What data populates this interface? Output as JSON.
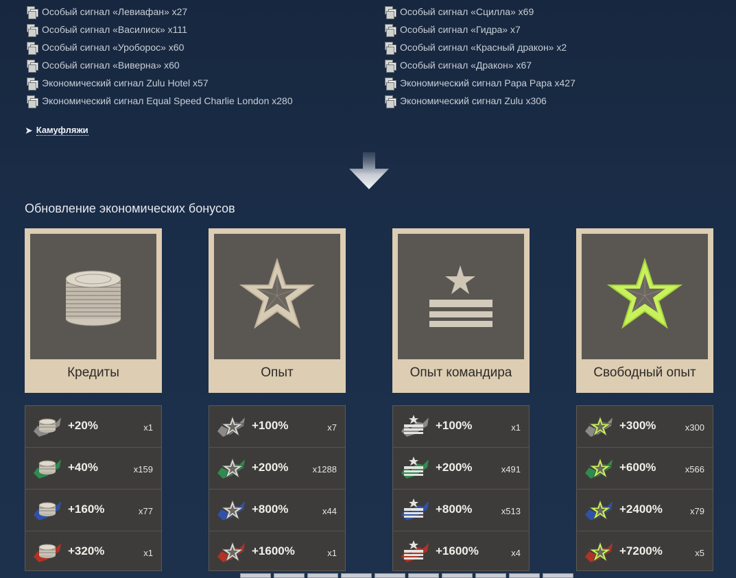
{
  "signals": {
    "left": [
      "Особый сигнал «Левиафан» x27",
      "Особый сигнал «Василиск» x111",
      "Особый сигнал «Уроборос» x60",
      "Особый сигнал «Виверна» x60",
      "Экономический сигнал Zulu Hotel x57",
      "Экономический сигнал Equal Speed Charlie London x280"
    ],
    "right": [
      "Особый сигнал «Сцилла» x69",
      "Особый сигнал «Гидра» x7",
      "Особый сигнал «Красный дракон» x2",
      "Особый сигнал «Дракон» x67",
      "Экономический сигнал Papa Papa x427",
      "Экономический сигнал Zulu x306"
    ]
  },
  "camo": {
    "arrow": "➤",
    "label": "Камуфляжи"
  },
  "section_title": "Обновление экономических бонусов",
  "categories": [
    {
      "label": "Кредиты",
      "icon": "coins-icon",
      "rows": [
        {
          "pct": "+20%",
          "count": "x1",
          "flag": "grey"
        },
        {
          "pct": "+40%",
          "count": "x159",
          "flag": "green"
        },
        {
          "pct": "+160%",
          "count": "x77",
          "flag": "blue"
        },
        {
          "pct": "+320%",
          "count": "x1",
          "flag": "red"
        }
      ]
    },
    {
      "label": "Опыт",
      "icon": "star-icon",
      "rows": [
        {
          "pct": "+100%",
          "count": "x7",
          "flag": "grey"
        },
        {
          "pct": "+200%",
          "count": "x1288",
          "flag": "green"
        },
        {
          "pct": "+800%",
          "count": "x44",
          "flag": "blue"
        },
        {
          "pct": "+1600%",
          "count": "x1",
          "flag": "red"
        }
      ]
    },
    {
      "label": "Опыт командира",
      "icon": "commander-rank-icon",
      "rows": [
        {
          "pct": "+100%",
          "count": "x1",
          "flag": "grey"
        },
        {
          "pct": "+200%",
          "count": "x491",
          "flag": "green"
        },
        {
          "pct": "+800%",
          "count": "x513",
          "flag": "blue"
        },
        {
          "pct": "+1600%",
          "count": "x4",
          "flag": "red"
        }
      ]
    },
    {
      "label": "Свободный опыт",
      "icon": "free-xp-star-icon",
      "rows": [
        {
          "pct": "+300%",
          "count": "x300",
          "flag": "grey"
        },
        {
          "pct": "+600%",
          "count": "x566",
          "flag": "green"
        },
        {
          "pct": "+2400%",
          "count": "x79",
          "flag": "blue"
        },
        {
          "pct": "+7200%",
          "count": "x5",
          "flag": "red"
        }
      ]
    }
  ],
  "colors": {
    "grey": "#8a8a88",
    "green": "#2e8b4f",
    "blue": "#2f52a8",
    "red": "#b23226",
    "card_bg": "#dccdb3",
    "art_bg": "#5a5753",
    "free_xp": "#c8f25a"
  }
}
